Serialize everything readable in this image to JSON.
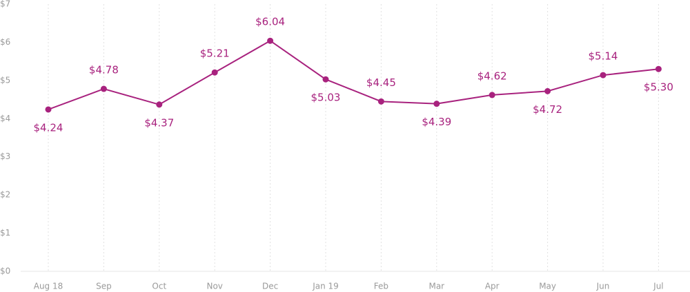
{
  "chart_data": {
    "type": "line",
    "categories": [
      "Aug 18",
      "Sep",
      "Oct",
      "Nov",
      "Dec",
      "Jan 19",
      "Feb",
      "Mar",
      "Apr",
      "May",
      "Jun",
      "Jul"
    ],
    "series": [
      {
        "color": "#a8227e",
        "values": [
          4.24,
          4.78,
          4.37,
          5.21,
          6.04,
          5.03,
          4.45,
          4.39,
          4.62,
          4.72,
          5.14,
          5.3
        ],
        "value_labels": [
          "$4.24",
          "$4.78",
          "$4.37",
          "$5.21",
          "$6.04",
          "$5.03",
          "$4.45",
          "$4.39",
          "$4.62",
          "$4.72",
          "$5.14",
          "$5.30"
        ]
      }
    ],
    "ylim": [
      0,
      7
    ],
    "yticks": [
      {
        "value": 0,
        "label": "$0"
      },
      {
        "value": 1,
        "label": "$1"
      },
      {
        "value": 2,
        "label": "$2"
      },
      {
        "value": 3,
        "label": "$3"
      },
      {
        "value": 4,
        "label": "$4"
      },
      {
        "value": 5,
        "label": "$5"
      },
      {
        "value": 6,
        "label": "$6"
      },
      {
        "value": 7,
        "label": "$7"
      }
    ],
    "grid": true
  }
}
